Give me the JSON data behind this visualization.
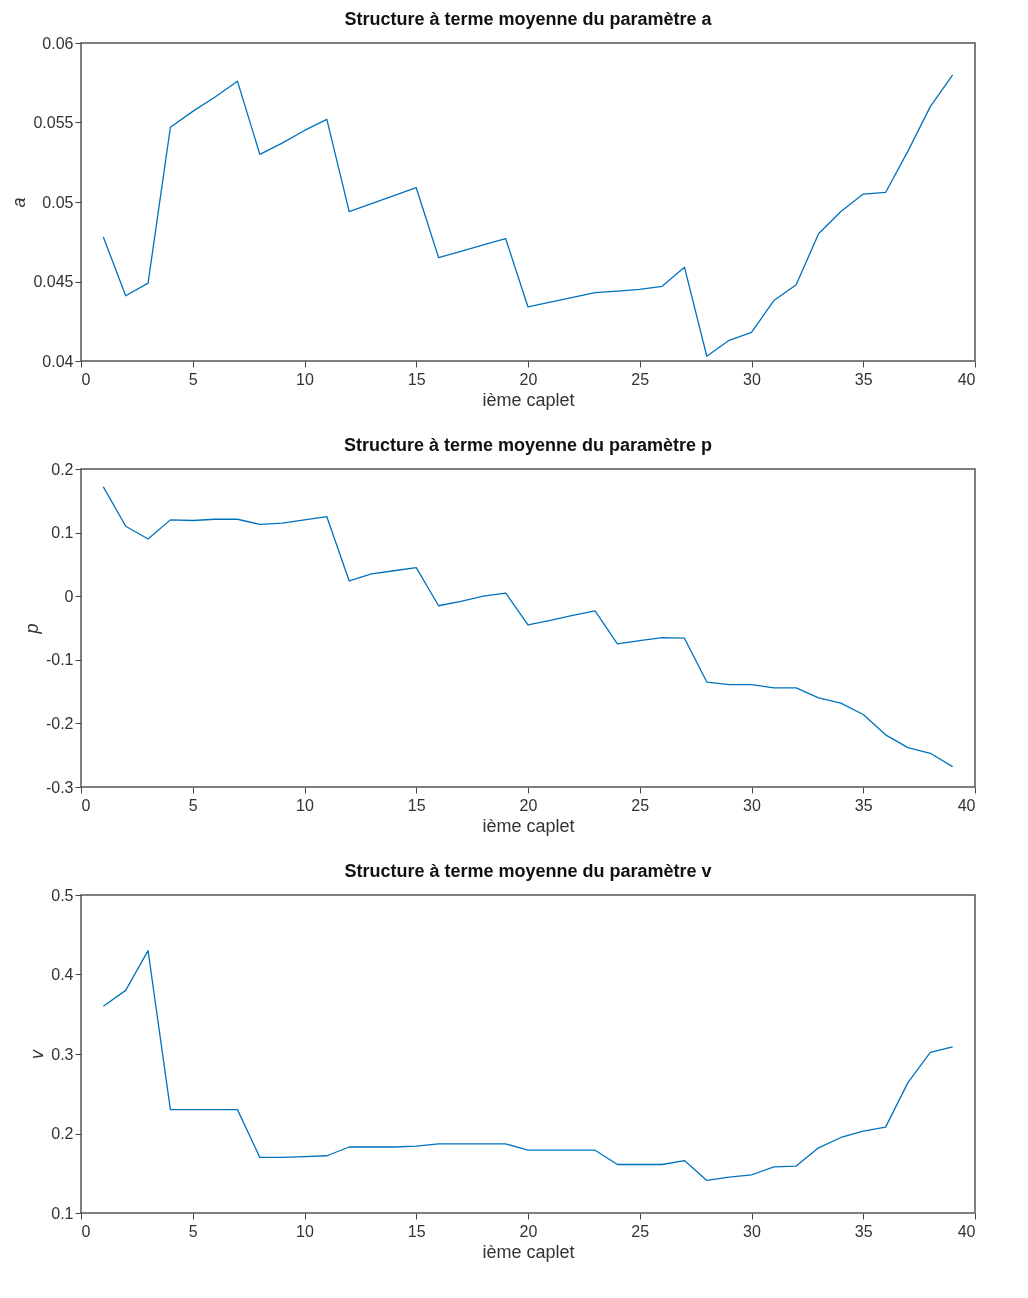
{
  "chart_data": [
    {
      "type": "line",
      "title": "Structure à terme moyenne du paramètre a",
      "xlabel": "ième caplet",
      "ylabel": "a",
      "grid": false,
      "x": [
        1,
        2,
        3,
        4,
        5,
        6,
        7,
        8,
        9,
        10,
        11,
        12,
        13,
        14,
        15,
        16,
        17,
        18,
        19,
        20,
        21,
        22,
        23,
        24,
        25,
        26,
        27,
        28,
        29,
        30,
        31,
        32,
        33,
        34,
        35,
        36,
        37,
        38,
        39
      ],
      "xlim": [
        0,
        40
      ],
      "xticks": [
        0,
        5,
        10,
        15,
        20,
        25,
        30,
        35,
        40
      ],
      "ylim": [
        0.04,
        0.06
      ],
      "yticks": [
        0.04,
        0.045,
        0.05,
        0.055,
        0.06
      ],
      "series": [
        {
          "color": "#0072bd",
          "values": [
            0.0478,
            0.0441,
            0.0449,
            0.0547,
            0.0557,
            0.0566,
            0.0576,
            0.053,
            0.0537,
            0.0545,
            0.0552,
            0.0494,
            0.0499,
            0.0504,
            0.0509,
            0.0465,
            0.0469,
            0.0473,
            0.0477,
            0.0434,
            0.0437,
            0.044,
            0.0443,
            0.0444,
            0.0445,
            0.0447,
            0.0459,
            0.0403,
            0.0413,
            0.0418,
            0.0438,
            0.0448,
            0.048,
            0.0494,
            0.0505,
            0.0506,
            0.0532,
            0.056,
            0.058
          ]
        }
      ]
    },
    {
      "type": "line",
      "title": "Structure à terme moyenne du paramètre p",
      "xlabel": "ième caplet",
      "ylabel": "p",
      "grid": false,
      "x": [
        1,
        2,
        3,
        4,
        5,
        6,
        7,
        8,
        9,
        10,
        11,
        12,
        13,
        14,
        15,
        16,
        17,
        18,
        19,
        20,
        21,
        22,
        23,
        24,
        25,
        26,
        27,
        28,
        29,
        30,
        31,
        32,
        33,
        34,
        35,
        36,
        37,
        38,
        39
      ],
      "xlim": [
        0,
        40
      ],
      "xticks": [
        0,
        5,
        10,
        15,
        20,
        25,
        30,
        35,
        40
      ],
      "ylim": [
        -0.3,
        0.2
      ],
      "yticks": [
        -0.3,
        -0.2,
        -0.1,
        0,
        0.1,
        0.2
      ],
      "series": [
        {
          "color": "#0072bd",
          "values": [
            0.172,
            0.11,
            0.09,
            0.12,
            0.119,
            0.121,
            0.121,
            0.113,
            0.115,
            0.12,
            0.125,
            0.024,
            0.035,
            0.04,
            0.045,
            -0.015,
            -0.008,
            0,
            0.005,
            -0.045,
            -0.038,
            -0.03,
            -0.023,
            -0.075,
            -0.07,
            -0.065,
            -0.066,
            -0.135,
            -0.139,
            -0.139,
            -0.144,
            -0.144,
            -0.16,
            -0.168,
            -0.186,
            -0.218,
            -0.238,
            -0.247,
            -0.268
          ]
        }
      ]
    },
    {
      "type": "line",
      "title": "Structure à terme moyenne du paramètre v",
      "xlabel": "ième caplet",
      "ylabel": "v",
      "grid": false,
      "x": [
        1,
        2,
        3,
        4,
        5,
        6,
        7,
        8,
        9,
        10,
        11,
        12,
        13,
        14,
        15,
        16,
        17,
        18,
        19,
        20,
        21,
        22,
        23,
        24,
        25,
        26,
        27,
        28,
        29,
        30,
        31,
        32,
        33,
        34,
        35,
        36,
        37,
        38,
        39
      ],
      "xlim": [
        0,
        40
      ],
      "xticks": [
        0,
        5,
        10,
        15,
        20,
        25,
        30,
        35,
        40
      ],
      "ylim": [
        0.1,
        0.5
      ],
      "yticks": [
        0.1,
        0.2,
        0.3,
        0.4,
        0.5
      ],
      "series": [
        {
          "color": "#0072bd",
          "values": [
            0.36,
            0.38,
            0.43,
            0.23,
            0.23,
            0.23,
            0.23,
            0.17,
            0.17,
            0.171,
            0.172,
            0.183,
            0.183,
            0.183,
            0.184,
            0.187,
            0.187,
            0.187,
            0.187,
            0.179,
            0.179,
            0.179,
            0.179,
            0.161,
            0.161,
            0.161,
            0.166,
            0.141,
            0.145,
            0.148,
            0.158,
            0.159,
            0.182,
            0.195,
            0.203,
            0.208,
            0.264,
            0.302,
            0.309
          ]
        }
      ]
    }
  ]
}
